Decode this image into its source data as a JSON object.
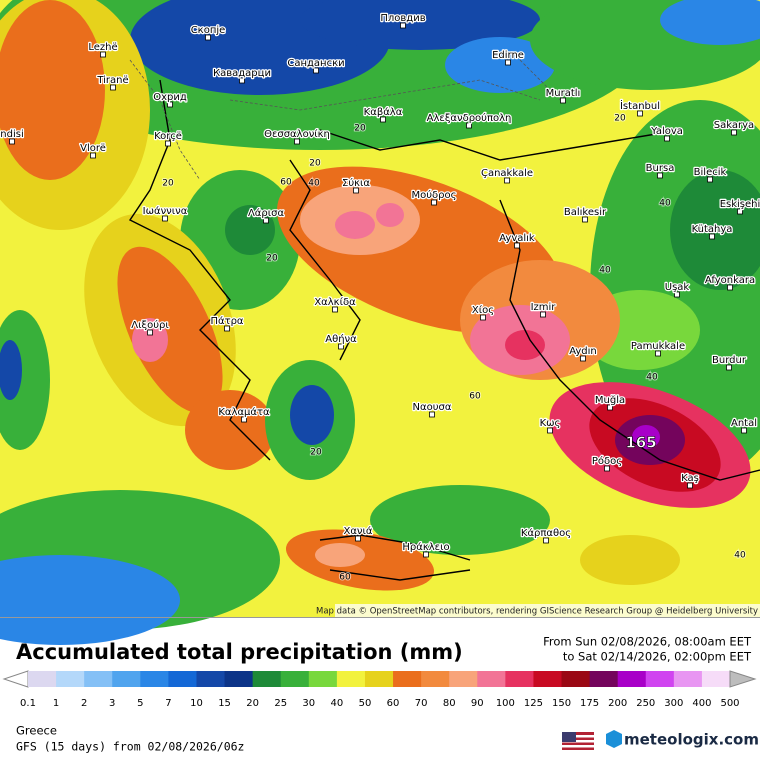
{
  "map": {
    "cities": [
      "Скопје",
      "Пловдив",
      "Lezhë",
      "Кавадарци",
      "Сандански",
      "Edirne",
      "Tiranë",
      "Охрид",
      "Muratlı",
      "İstanbul",
      "Καβάλα",
      "Αλεξανδρούπολη",
      "Yalova",
      "Sakarya",
      "Korçë",
      "Θεσσαλονίκη",
      "Vlorë",
      "ndisi",
      "Bursa",
      "Bilecik",
      "Çanakkale",
      "Σύκια",
      "Μούδρος",
      "Eskişehi",
      "Ιωάννινα",
      "Λάρισα",
      "Balıkesir",
      "Kütahya",
      "Ayvalık",
      "Afyonkara",
      "Uşak",
      "Λιξούρι",
      "Πάτρα",
      "Χαλκίδα",
      "Izmir",
      "Χίος",
      "Αθήνα",
      "Pamukkale",
      "Aydın",
      "Burdur",
      "Καλαμάτα",
      "Ναουσα",
      "Muğla",
      "Κως",
      "Antal",
      "Ρόδος",
      "Kaş",
      "Χανιά",
      "Ηράκλειο",
      "Κάρπαθος"
    ],
    "contour_labels": [
      "20",
      "20",
      "20",
      "20",
      "20",
      "20",
      "40",
      "40",
      "40",
      "40",
      "40",
      "60",
      "60",
      "60"
    ],
    "max_label": "165",
    "attribution": "Map data © OpenStreetMap contributors, rendering GIScience Research Group @ Heidelberg University"
  },
  "footer": {
    "title": "Accumulated total precipitation (mm)",
    "from": "From Sun 02/08/2026, 08:00am EET",
    "to": "to Sat 02/14/2026, 02:00pm EET",
    "region": "Greece",
    "model": "GFS (15 days) from 02/08/2026/06z",
    "brand": "meteologix.com"
  },
  "legend": {
    "labels": [
      "0.1",
      "1",
      "2",
      "3",
      "5",
      "7",
      "10",
      "15",
      "20",
      "25",
      "30",
      "40",
      "50",
      "60",
      "70",
      "80",
      "90",
      "100",
      "125",
      "150",
      "175",
      "200",
      "250",
      "300",
      "400",
      "500"
    ],
    "colors": [
      "#dcd8f0",
      "#b4d8fa",
      "#84c0f6",
      "#50a4ee",
      "#2a86e6",
      "#1468d6",
      "#1448a8",
      "#0c3488",
      "#1e8a38",
      "#38b03a",
      "#78d83c",
      "#f2f23e",
      "#e6d21c",
      "#ea6e1c",
      "#f28a3e",
      "#f8a47a",
      "#f27496",
      "#e63260",
      "#c80a22",
      "#9a0814",
      "#74045c",
      "#a800c8",
      "#d044f0",
      "#e896f2",
      "#f6dcf8"
    ],
    "under": "#ffffff",
    "over": "#bdbdbd"
  }
}
